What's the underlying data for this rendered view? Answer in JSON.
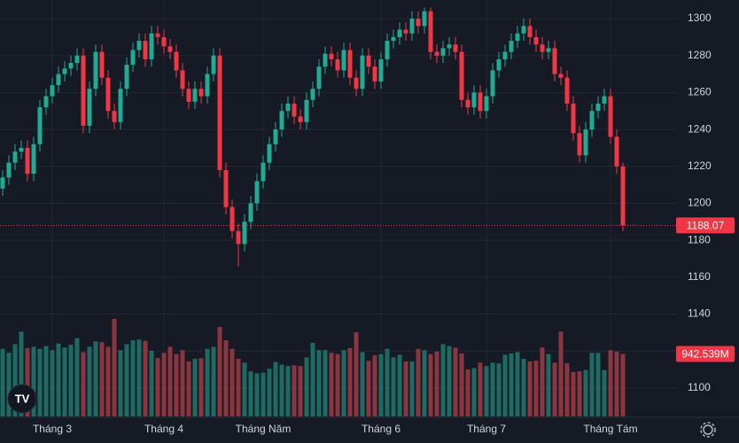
{
  "chart_data": {
    "type": "candlestick",
    "categories": [
      null,
      null,
      null,
      null,
      null,
      null,
      null,
      null,
      "Tháng 3",
      null,
      null,
      null,
      null,
      null,
      null,
      null,
      null,
      null,
      null,
      null,
      null,
      null,
      null,
      null,
      null,
      null,
      "Tháng 4",
      null,
      null,
      null,
      null,
      null,
      null,
      null,
      null,
      null,
      null,
      null,
      null,
      null,
      null,
      null,
      "Tháng Năm",
      null,
      null,
      null,
      null,
      null,
      null,
      null,
      null,
      null,
      null,
      null,
      null,
      null,
      null,
      null,
      null,
      null,
      null,
      "Tháng 6",
      null,
      null,
      null,
      null,
      null,
      null,
      null,
      null,
      null,
      null,
      null,
      null,
      null,
      null,
      null,
      null,
      "Tháng 7",
      null,
      null,
      null,
      null,
      null,
      null,
      null,
      null,
      null,
      null,
      null,
      null,
      null,
      null,
      null,
      null,
      null,
      null,
      null,
      "Tháng Tám",
      null,
      null
    ],
    "open": [
      1208,
      1214,
      1222,
      1228,
      1230,
      1216,
      1232,
      1252,
      1258,
      1264,
      1270,
      1273,
      1276,
      1280,
      1242,
      1262,
      1282,
      1268,
      1250,
      1244,
      1262,
      1275,
      1283,
      1288,
      1278,
      1292,
      1290,
      1285,
      1282,
      1272,
      1262,
      1255,
      1262,
      1258,
      1270,
      1280,
      1218,
      1198,
      1185,
      1178,
      1190,
      1200,
      1212,
      1222,
      1232,
      1240,
      1250,
      1254,
      1247,
      1244,
      1256,
      1262,
      1274,
      1281,
      1278,
      1272,
      1283,
      1268,
      1262,
      1280,
      1274,
      1266,
      1278,
      1288,
      1290,
      1294,
      1292,
      1300,
      1296,
      1304,
      1282,
      1280,
      1284,
      1286,
      1282,
      1256,
      1252,
      1260,
      1250,
      1258,
      1272,
      1278,
      1282,
      1288,
      1292,
      1296,
      1290,
      1286,
      1282,
      1284,
      1270,
      1268,
      1254,
      1238,
      1226,
      1240,
      1250,
      1254,
      1258,
      1236,
      1220
    ],
    "high": [
      1218,
      1226,
      1232,
      1234,
      1234,
      1236,
      1256,
      1262,
      1268,
      1274,
      1277,
      1280,
      1284,
      1284,
      1266,
      1286,
      1286,
      1272,
      1254,
      1266,
      1279,
      1287,
      1292,
      1292,
      1296,
      1296,
      1294,
      1289,
      1286,
      1276,
      1266,
      1266,
      1266,
      1274,
      1284,
      1284,
      1222,
      1202,
      1189,
      1194,
      1204,
      1216,
      1226,
      1236,
      1244,
      1254,
      1258,
      1258,
      1251,
      1260,
      1266,
      1278,
      1285,
      1285,
      1282,
      1287,
      1287,
      1272,
      1284,
      1284,
      1278,
      1282,
      1292,
      1294,
      1298,
      1298,
      1304,
      1304,
      1306,
      1306,
      1286,
      1288,
      1290,
      1290,
      1286,
      1260,
      1264,
      1264,
      1262,
      1276,
      1282,
      1286,
      1292,
      1296,
      1300,
      1300,
      1294,
      1290,
      1288,
      1288,
      1274,
      1272,
      1258,
      1242,
      1244,
      1254,
      1258,
      1262,
      1262,
      1240,
      1222
    ],
    "low": [
      1204,
      1210,
      1218,
      1224,
      1212,
      1212,
      1228,
      1248,
      1254,
      1260,
      1266,
      1269,
      1272,
      1238,
      1238,
      1258,
      1264,
      1246,
      1240,
      1240,
      1258,
      1271,
      1279,
      1274,
      1274,
      1286,
      1281,
      1278,
      1268,
      1258,
      1251,
      1251,
      1254,
      1254,
      1266,
      1214,
      1194,
      1181,
      1166,
      1174,
      1186,
      1196,
      1208,
      1218,
      1228,
      1236,
      1246,
      1243,
      1240,
      1240,
      1252,
      1258,
      1270,
      1274,
      1268,
      1268,
      1264,
      1258,
      1258,
      1270,
      1262,
      1262,
      1274,
      1284,
      1286,
      1288,
      1288,
      1292,
      1292,
      1278,
      1276,
      1276,
      1280,
      1278,
      1252,
      1248,
      1248,
      1246,
      1246,
      1254,
      1268,
      1274,
      1278,
      1284,
      1288,
      1286,
      1282,
      1278,
      1278,
      1266,
      1264,
      1250,
      1234,
      1222,
      1222,
      1236,
      1246,
      1250,
      1232,
      1216,
      1185
    ],
    "close": [
      1214,
      1222,
      1228,
      1230,
      1216,
      1232,
      1252,
      1258,
      1264,
      1270,
      1273,
      1276,
      1280,
      1242,
      1262,
      1282,
      1268,
      1250,
      1244,
      1262,
      1275,
      1283,
      1288,
      1278,
      1292,
      1290,
      1285,
      1282,
      1272,
      1262,
      1255,
      1262,
      1258,
      1270,
      1280,
      1218,
      1198,
      1185,
      1178,
      1190,
      1200,
      1212,
      1222,
      1232,
      1240,
      1250,
      1254,
      1247,
      1244,
      1256,
      1262,
      1274,
      1281,
      1278,
      1272,
      1283,
      1268,
      1262,
      1280,
      1274,
      1266,
      1278,
      1288,
      1290,
      1294,
      1292,
      1300,
      1296,
      1304,
      1282,
      1280,
      1284,
      1286,
      1282,
      1256,
      1252,
      1260,
      1250,
      1258,
      1272,
      1278,
      1282,
      1288,
      1292,
      1296,
      1290,
      1286,
      1282,
      1284,
      1270,
      1268,
      1254,
      1238,
      1226,
      1240,
      1250,
      1254,
      1258,
      1236,
      1220,
      1188.07
    ],
    "volume": [
      1020,
      960,
      1090,
      1280,
      1030,
      1050,
      1020,
      1060,
      1000,
      1100,
      1040,
      1080,
      1180,
      970,
      1050,
      1130,
      1120,
      1050,
      1470,
      1000,
      1090,
      1150,
      1160,
      1140,
      990,
      880,
      960,
      1050,
      940,
      1000,
      830,
      870,
      880,
      1020,
      1050,
      1350,
      1150,
      1020,
      870,
      810,
      680,
      650,
      660,
      720,
      820,
      780,
      760,
      770,
      760,
      890,
      1110,
      1000,
      1000,
      960,
      940,
      1000,
      1030,
      1270,
      970,
      840,
      920,
      940,
      1020,
      890,
      930,
      830,
      830,
      1020,
      1000,
      940,
      980,
      1090,
      1060,
      1040,
      950,
      710,
      730,
      810,
      760,
      810,
      800,
      930,
      950,
      970,
      870,
      830,
      840,
      1040,
      940,
      810,
      1280,
      800,
      670,
      680,
      700,
      960,
      960,
      700,
      1000,
      980,
      942.539
    ],
    "up_color": "#22ab94",
    "down_color": "#f23645",
    "volume_up_color": "#1d6b62",
    "volume_down_color": "#8b3540",
    "ylim": [
      1084.6,
      1310.1
    ],
    "yticks": [
      1100,
      1120,
      1140,
      1160,
      1180,
      1200,
      1220,
      1240,
      1260,
      1280,
      1300
    ],
    "grid": true,
    "last_price_label": "1188.07",
    "last_volume_label": "942.539M"
  }
}
